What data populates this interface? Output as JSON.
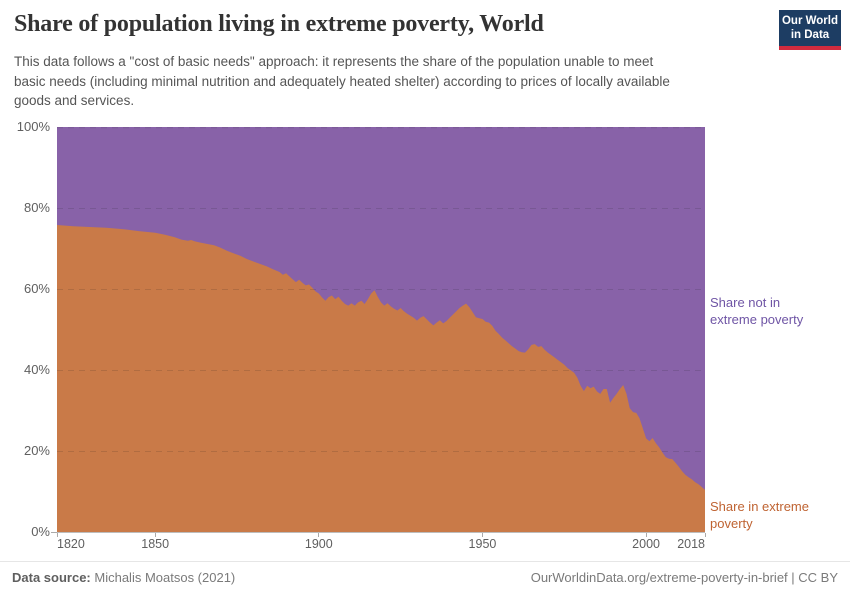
{
  "header": {
    "title": "Share of population living in extreme poverty, World",
    "subtitle_lines": [
      "This data follows a \"cost of basic needs\" approach: it represents the share of the population unable to meet",
      "basic needs (including minimal nutrition and adequately heated shelter) according to prices of locally available",
      "goods and services."
    ],
    "logo": {
      "line1": "Our World",
      "line2": "in Data",
      "bg_color": "#1d3d63",
      "bar_color": "#d12b3e"
    }
  },
  "chart_data": {
    "type": "area",
    "stacked": true,
    "title": "Share of population living in extreme poverty, World",
    "x_range": [
      1820,
      2018
    ],
    "y_range": [
      0,
      100
    ],
    "x_ticks": [
      1820,
      1850,
      1900,
      1950,
      2000,
      2018
    ],
    "y_ticks": [
      0,
      20,
      40,
      60,
      80,
      100
    ],
    "y_tick_suffix": "%",
    "grid": true,
    "legend_position": "right",
    "series": [
      {
        "name": "Share in extreme poverty",
        "color": "#c97a48",
        "text_color": "#bf6332",
        "points": [
          [
            1820,
            75.8
          ],
          [
            1825,
            75.5
          ],
          [
            1830,
            75.3
          ],
          [
            1835,
            75.1
          ],
          [
            1840,
            74.8
          ],
          [
            1845,
            74.3
          ],
          [
            1850,
            73.9
          ],
          [
            1853,
            73.4
          ],
          [
            1856,
            72.8
          ],
          [
            1858,
            72.2
          ],
          [
            1860,
            71.9
          ],
          [
            1861,
            72.1
          ],
          [
            1862,
            71.8
          ],
          [
            1864,
            71.4
          ],
          [
            1866,
            71.1
          ],
          [
            1868,
            70.8
          ],
          [
            1870,
            70.2
          ],
          [
            1872,
            69.4
          ],
          [
            1874,
            68.8
          ],
          [
            1876,
            68.2
          ],
          [
            1878,
            67.4
          ],
          [
            1880,
            66.8
          ],
          [
            1882,
            66.2
          ],
          [
            1884,
            65.6
          ],
          [
            1886,
            64.9
          ],
          [
            1888,
            64.2
          ],
          [
            1889,
            63.5
          ],
          [
            1890,
            63.9
          ],
          [
            1891,
            63.1
          ],
          [
            1892,
            62.4
          ],
          [
            1893,
            61.7
          ],
          [
            1894,
            62.3
          ],
          [
            1895,
            61.5
          ],
          [
            1896,
            60.9
          ],
          [
            1897,
            61.1
          ],
          [
            1898,
            60.3
          ],
          [
            1899,
            59.4
          ],
          [
            1900,
            58.9
          ],
          [
            1901,
            57.9
          ],
          [
            1902,
            57.1
          ],
          [
            1903,
            58.0
          ],
          [
            1904,
            58.4
          ],
          [
            1905,
            57.5
          ],
          [
            1906,
            58.1
          ],
          [
            1907,
            57.1
          ],
          [
            1908,
            56.3
          ],
          [
            1909,
            55.9
          ],
          [
            1910,
            56.5
          ],
          [
            1911,
            55.9
          ],
          [
            1912,
            56.7
          ],
          [
            1913,
            57.1
          ],
          [
            1914,
            56.3
          ],
          [
            1915,
            57.5
          ],
          [
            1916,
            58.9
          ],
          [
            1917,
            59.7
          ],
          [
            1918,
            58.1
          ],
          [
            1919,
            56.7
          ],
          [
            1920,
            55.9
          ],
          [
            1921,
            56.5
          ],
          [
            1922,
            55.7
          ],
          [
            1923,
            55.1
          ],
          [
            1924,
            54.7
          ],
          [
            1925,
            55.3
          ],
          [
            1926,
            54.5
          ],
          [
            1927,
            53.9
          ],
          [
            1928,
            53.4
          ],
          [
            1929,
            52.9
          ],
          [
            1930,
            52.2
          ],
          [
            1931,
            52.9
          ],
          [
            1932,
            53.3
          ],
          [
            1933,
            52.5
          ],
          [
            1934,
            51.7
          ],
          [
            1935,
            51.0
          ],
          [
            1936,
            51.7
          ],
          [
            1937,
            52.3
          ],
          [
            1938,
            51.5
          ],
          [
            1939,
            52.1
          ],
          [
            1940,
            52.9
          ],
          [
            1941,
            53.7
          ],
          [
            1942,
            54.5
          ],
          [
            1943,
            55.3
          ],
          [
            1944,
            55.9
          ],
          [
            1945,
            56.4
          ],
          [
            1946,
            55.5
          ],
          [
            1947,
            54.3
          ],
          [
            1948,
            53.0
          ],
          [
            1949,
            52.8
          ],
          [
            1950,
            52.6
          ],
          [
            1951,
            51.9
          ],
          [
            1952,
            51.7
          ],
          [
            1953,
            50.9
          ],
          [
            1954,
            49.7
          ],
          [
            1955,
            48.9
          ],
          [
            1956,
            48.0
          ],
          [
            1957,
            47.3
          ],
          [
            1958,
            46.6
          ],
          [
            1959,
            45.9
          ],
          [
            1960,
            45.3
          ],
          [
            1961,
            44.7
          ],
          [
            1962,
            44.4
          ],
          [
            1963,
            44.3
          ],
          [
            1964,
            45.1
          ],
          [
            1965,
            46.2
          ],
          [
            1966,
            46.4
          ],
          [
            1967,
            45.7
          ],
          [
            1968,
            45.9
          ],
          [
            1969,
            45.0
          ],
          [
            1970,
            44.3
          ],
          [
            1971,
            43.7
          ],
          [
            1972,
            43.1
          ],
          [
            1973,
            42.5
          ],
          [
            1974,
            41.9
          ],
          [
            1975,
            41.3
          ],
          [
            1976,
            40.5
          ],
          [
            1977,
            39.9
          ],
          [
            1978,
            39.3
          ],
          [
            1979,
            38.1
          ],
          [
            1980,
            36.1
          ],
          [
            1981,
            34.8
          ],
          [
            1982,
            36.1
          ],
          [
            1983,
            35.5
          ],
          [
            1984,
            35.9
          ],
          [
            1985,
            34.7
          ],
          [
            1986,
            34.1
          ],
          [
            1987,
            35.3
          ],
          [
            1988,
            35.3
          ],
          [
            1989,
            31.9
          ],
          [
            1990,
            33.1
          ],
          [
            1991,
            34.1
          ],
          [
            1992,
            35.3
          ],
          [
            1993,
            36.3
          ],
          [
            1994,
            34.1
          ],
          [
            1995,
            30.6
          ],
          [
            1996,
            29.6
          ],
          [
            1997,
            29.4
          ],
          [
            1998,
            28.1
          ],
          [
            1999,
            25.6
          ],
          [
            2000,
            23.1
          ],
          [
            2001,
            22.4
          ],
          [
            2002,
            23.2
          ],
          [
            2003,
            21.9
          ],
          [
            2004,
            20.9
          ],
          [
            2005,
            19.6
          ],
          [
            2006,
            18.5
          ],
          [
            2007,
            18.1
          ],
          [
            2008,
            18.0
          ],
          [
            2009,
            17.1
          ],
          [
            2010,
            16.1
          ],
          [
            2011,
            15.0
          ],
          [
            2012,
            14.1
          ],
          [
            2013,
            13.5
          ],
          [
            2014,
            13.0
          ],
          [
            2015,
            12.3
          ],
          [
            2016,
            11.8
          ],
          [
            2017,
            11.1
          ],
          [
            2018,
            10.4
          ]
        ]
      },
      {
        "name": "Share not in extreme poverty",
        "color": "#8862a8",
        "text_color": "#6f55a5",
        "derived": "complement-to-100%"
      }
    ]
  },
  "footer": {
    "source_label": "Data source:",
    "source_value": "Michalis Moatsos (2021)",
    "credit": "OurWorldinData.org/extreme-poverty-in-brief | CC BY"
  }
}
